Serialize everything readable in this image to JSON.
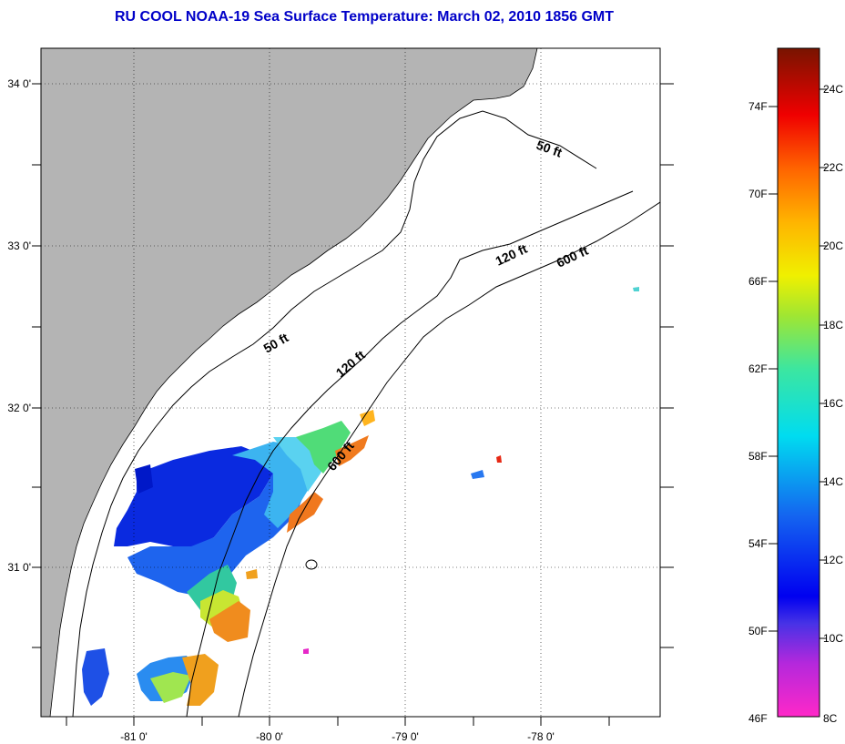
{
  "title": "RU COOL  NOAA-19  Sea Surface Temperature:  March 02, 2010 1856 GMT",
  "axes": {
    "lat_labels": [
      "34 0'",
      "33 0'",
      "32 0'",
      "31 0'"
    ],
    "lon_labels": [
      "-81 0'",
      "-80 0'",
      "-79 0'",
      "-78 0'"
    ]
  },
  "contours": {
    "ft50_upper": "50 ft",
    "ft50_lower": "50 ft",
    "ft120_upper": "120 ft",
    "ft120_lower": "120 ft",
    "ft600_upper": "600 ft",
    "ft600_lower": "600 ft"
  },
  "colorbar": {
    "fahrenheit_labels": [
      "74F",
      "70F",
      "66F",
      "62F",
      "58F",
      "54F",
      "50F",
      "46F"
    ],
    "celsius_labels": [
      "24C",
      "22C",
      "20C",
      "18C",
      "16C",
      "14C",
      "12C",
      "10C",
      "8C"
    ]
  },
  "colors": {
    "title": "#0000c8",
    "land": "#b4b4b4",
    "ocean": "#ffffff"
  }
}
